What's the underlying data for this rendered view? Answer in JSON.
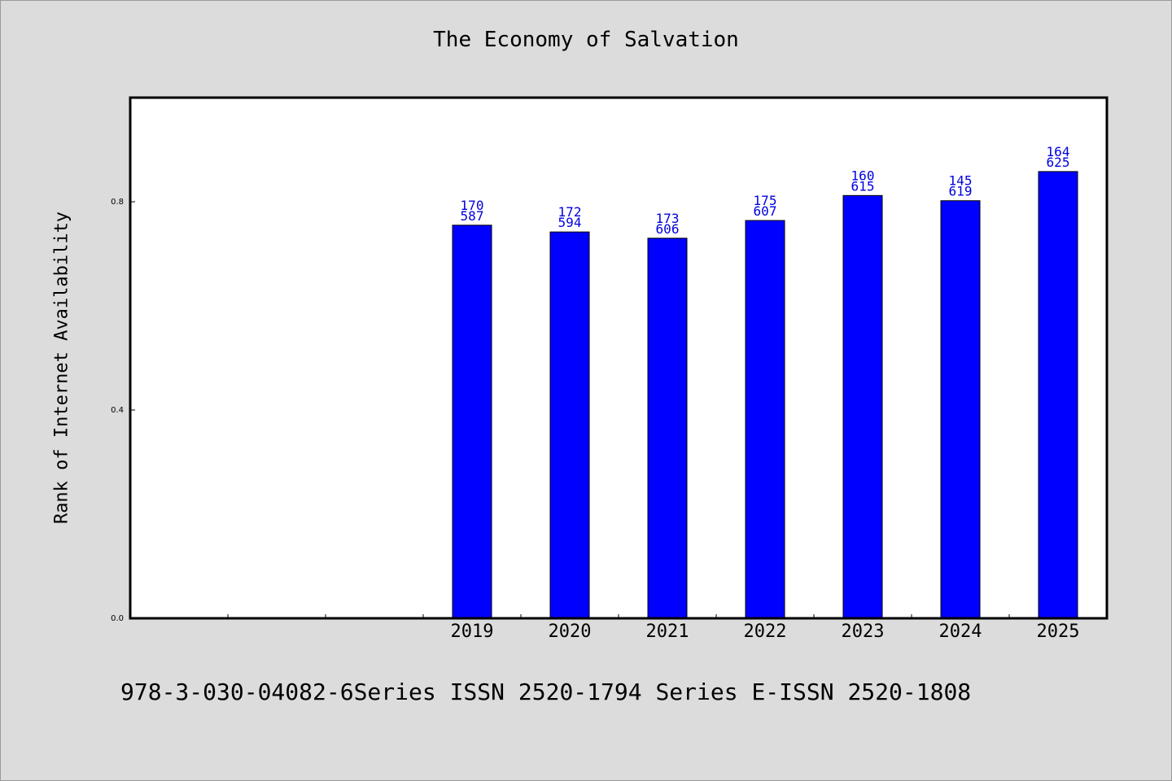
{
  "chart_data": {
    "type": "bar",
    "title": "The Economy of Salvation",
    "ylabel": "Rank of Internet Availability",
    "xlabel": "",
    "categories": [
      "",
      "",
      "",
      "2019",
      "2020",
      "2021",
      "2022",
      "2023",
      "2024",
      "2025"
    ],
    "values": [
      null,
      null,
      null,
      0.755,
      0.742,
      0.73,
      0.764,
      0.812,
      0.802,
      0.858
    ],
    "bar_labels": [
      null,
      null,
      null,
      [
        "170",
        "587"
      ],
      [
        "172",
        "594"
      ],
      [
        "173",
        "606"
      ],
      [
        "175",
        "607"
      ],
      [
        "160",
        "615"
      ],
      [
        "145",
        "619"
      ],
      [
        "164",
        "625"
      ]
    ],
    "yticks": [
      0.0,
      0.4,
      0.8
    ],
    "ytick_labels": [
      "0.0",
      "0.4",
      "0.8"
    ],
    "ylim": [
      0,
      1.0
    ],
    "grid": false,
    "bar_color": "#0000ff",
    "label_color": "#0000dd"
  },
  "footer": "978-3-030-04082-6Series ISSN 2520-1794 Series E-ISSN 2520-1808"
}
